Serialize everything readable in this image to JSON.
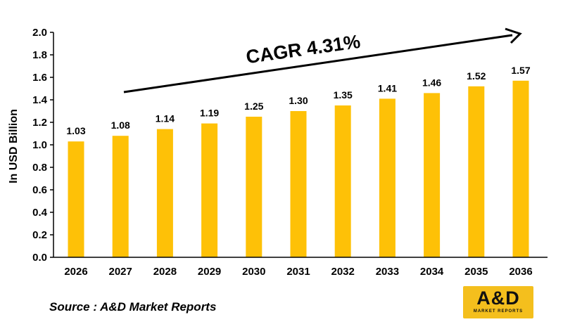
{
  "chart_data": {
    "type": "bar",
    "categories": [
      "2026",
      "2027",
      "2028",
      "2029",
      "2030",
      "2031",
      "2032",
      "2033",
      "2034",
      "2035",
      "2036"
    ],
    "values": [
      1.03,
      1.08,
      1.14,
      1.19,
      1.25,
      1.3,
      1.35,
      1.41,
      1.46,
      1.52,
      1.57
    ],
    "data_labels": [
      "1.03",
      "1.08",
      "1.14",
      "1.19",
      "1.25",
      "1.30",
      "1.35",
      "1.41",
      "1.46",
      "1.52",
      "1.57"
    ],
    "ylabel": "In USD Billion",
    "ylim": [
      0,
      2.0
    ],
    "yticks": [
      "0.0",
      "0.2",
      "0.4",
      "0.6",
      "0.8",
      "1.0",
      "1.2",
      "1.4",
      "1.6",
      "1.8",
      "2.0"
    ],
    "annotation": "CAGR 4.31%",
    "bar_color": "#fec107",
    "grid": false,
    "legend": "none"
  },
  "source": "Source : A&D Market Reports",
  "logo": {
    "text": "A&D",
    "subtext": "MARKET REPORTS",
    "color": "#f4bf1d"
  }
}
